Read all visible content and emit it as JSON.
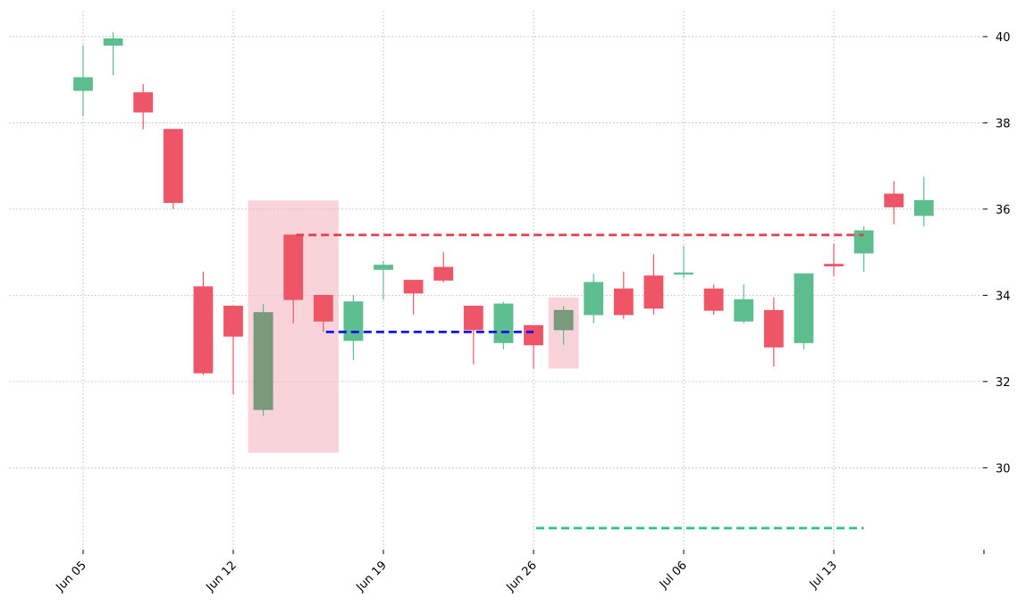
{
  "chart_data": {
    "type": "candlestick",
    "title": "",
    "xlabel": "",
    "ylabel": "",
    "ylim": [
      28.1,
      40.6
    ],
    "grid": true,
    "colors": {
      "up": "#5cbd8f",
      "down": "#ee5566",
      "pattern_zone": "#f4b6bf",
      "resistance": "#e0404e",
      "pattern_line": "#1010ee",
      "support": "#2ec28b"
    },
    "x_ticks": [
      "Jun 05",
      "Jun 12",
      "Jun 19",
      "Jun 26",
      "Jul 06",
      "Jul 13",
      ""
    ],
    "y_ticks": [
      "30",
      "32",
      "34",
      "36",
      "38",
      "40"
    ],
    "y_tick_values": [
      30,
      32,
      34,
      36,
      38,
      40
    ],
    "candles": [
      {
        "o": 38.75,
        "h": 39.8,
        "l": 38.15,
        "c": 39.05
      },
      {
        "o": 39.8,
        "h": 40.1,
        "l": 39.1,
        "c": 39.95
      },
      {
        "o": 38.7,
        "h": 38.9,
        "l": 37.85,
        "c": 38.25
      },
      {
        "o": 37.85,
        "h": 37.85,
        "l": 36.0,
        "c": 36.15
      },
      {
        "o": 34.2,
        "h": 34.55,
        "l": 32.15,
        "c": 32.2
      },
      {
        "o": 33.75,
        "h": 33.75,
        "l": 31.7,
        "c": 33.05
      },
      {
        "o": 31.35,
        "h": 33.8,
        "l": 31.2,
        "c": 33.6
      },
      {
        "o": 35.4,
        "h": 35.4,
        "l": 33.35,
        "c": 33.9
      },
      {
        "o": 34.0,
        "h": 34.0,
        "l": 33.15,
        "c": 33.4
      },
      {
        "o": 32.95,
        "h": 34.0,
        "l": 32.5,
        "c": 33.85
      },
      {
        "o": 34.6,
        "h": 34.8,
        "l": 33.9,
        "c": 34.7
      },
      {
        "o": 34.35,
        "h": 34.35,
        "l": 33.55,
        "c": 34.05
      },
      {
        "o": 34.65,
        "h": 35.0,
        "l": 34.3,
        "c": 34.35
      },
      {
        "o": 33.75,
        "h": 33.75,
        "l": 32.4,
        "c": 33.2
      },
      {
        "o": 32.9,
        "h": 33.85,
        "l": 32.75,
        "c": 33.8
      },
      {
        "o": 33.3,
        "h": 33.3,
        "l": 32.3,
        "c": 32.85
      },
      {
        "o": 33.2,
        "h": 33.75,
        "l": 32.85,
        "c": 33.65
      },
      {
        "o": 33.55,
        "h": 34.5,
        "l": 33.35,
        "c": 34.3
      },
      {
        "o": 34.15,
        "h": 34.55,
        "l": 33.45,
        "c": 33.55
      },
      {
        "o": 34.45,
        "h": 34.95,
        "l": 33.55,
        "c": 33.7
      },
      {
        "o": 34.52,
        "h": 35.15,
        "l": 34.4,
        "c": 34.52
      },
      {
        "o": 34.15,
        "h": 34.25,
        "l": 33.55,
        "c": 33.65
      },
      {
        "o": 33.4,
        "h": 34.25,
        "l": 33.35,
        "c": 33.9
      },
      {
        "o": 33.65,
        "h": 33.95,
        "l": 32.35,
        "c": 32.8
      },
      {
        "o": 32.9,
        "h": 34.5,
        "l": 32.75,
        "c": 34.5
      },
      {
        "o": 34.72,
        "h": 35.2,
        "l": 34.45,
        "c": 34.68
      },
      {
        "o": 34.98,
        "h": 35.6,
        "l": 34.55,
        "c": 35.5
      },
      {
        "o": 36.35,
        "h": 36.65,
        "l": 35.65,
        "c": 36.05
      },
      {
        "o": 35.85,
        "h": 36.75,
        "l": 35.6,
        "c": 36.2
      }
    ],
    "candle_to_tick": {
      "0": 0,
      "5": 1,
      "10": 2,
      "15": 3,
      "20": 4,
      "25": 5
    },
    "zones": [
      {
        "from": 6,
        "to": 8,
        "ymin": 30.35,
        "ymax": 36.2
      },
      {
        "from": 16,
        "to": 16,
        "ymin": 32.3,
        "ymax": 33.95
      }
    ],
    "highlighted_candles": [
      6,
      16
    ],
    "lines": [
      {
        "name": "resistance",
        "from": 7,
        "to": 26,
        "y": 35.4
      },
      {
        "name": "pattern",
        "from": 8,
        "to": 15,
        "y": 33.15
      },
      {
        "name": "support",
        "from": 15,
        "to": 26,
        "y": 28.6
      }
    ]
  }
}
